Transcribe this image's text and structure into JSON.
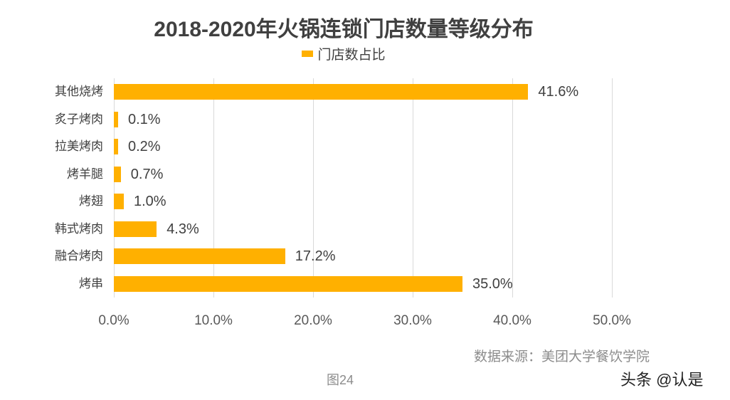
{
  "chart_data": {
    "type": "bar",
    "orientation": "horizontal",
    "title": "2018-2020年火锅连锁门店数量等级分布",
    "legend": [
      "门店数占比"
    ],
    "legend_position": "top",
    "categories": [
      "其他烧烤",
      "炙子烤肉",
      "拉美烤肉",
      "烤羊腿",
      "烤翅",
      "韩式烤肉",
      "融合烤肉",
      "烤串"
    ],
    "series": [
      {
        "name": "门店数占比",
        "values": [
          41.6,
          0.1,
          0.2,
          0.7,
          1.0,
          4.3,
          17.2,
          35.0
        ],
        "color": "#FFB000"
      }
    ],
    "value_labels": [
      "41.6%",
      "0.1%",
      "0.2%",
      "0.7%",
      "1.0%",
      "4.3%",
      "17.2%",
      "35.0%"
    ],
    "xlabel": "",
    "ylabel": "",
    "xlim": [
      0,
      50
    ],
    "xticks": [
      "0.0%",
      "10.0%",
      "20.0%",
      "30.0%",
      "40.0%",
      "50.0%"
    ],
    "grid": "vertical"
  },
  "source": "数据来源：美团大学餐饮学院",
  "figure_label": "图24",
  "watermark": "头条 @认是"
}
